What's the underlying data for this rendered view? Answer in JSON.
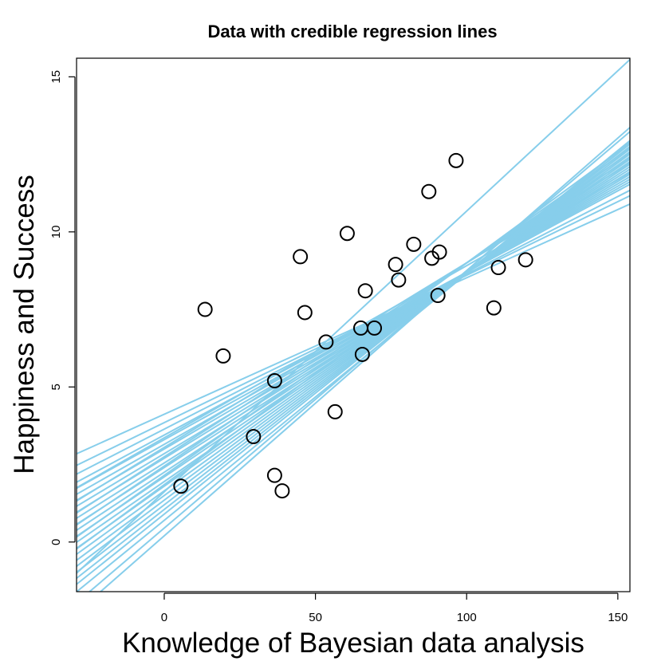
{
  "chart_data": {
    "type": "scatter",
    "title": "Data with credible regression lines",
    "xlabel": "Knowledge of Bayesian data analysis",
    "ylabel": "Happiness and Success",
    "xlim": [
      -29,
      154
    ],
    "ylim": [
      -1.6,
      15.6
    ],
    "xticks": [
      0,
      50,
      100,
      150
    ],
    "yticks": [
      0,
      5,
      10,
      15
    ],
    "grid": false,
    "line_color": "#87ceeb",
    "point_color": "#000000",
    "points": [
      {
        "x": 5.5,
        "y": 1.8
      },
      {
        "x": 13.5,
        "y": 7.5
      },
      {
        "x": 19.5,
        "y": 6.0
      },
      {
        "x": 29.5,
        "y": 3.4
      },
      {
        "x": 36.5,
        "y": 5.2
      },
      {
        "x": 36.5,
        "y": 2.15
      },
      {
        "x": 39.0,
        "y": 1.65
      },
      {
        "x": 45.0,
        "y": 9.2
      },
      {
        "x": 46.5,
        "y": 7.4
      },
      {
        "x": 53.5,
        "y": 6.45
      },
      {
        "x": 56.5,
        "y": 4.2
      },
      {
        "x": 60.5,
        "y": 9.95
      },
      {
        "x": 65.0,
        "y": 6.9
      },
      {
        "x": 65.5,
        "y": 6.05
      },
      {
        "x": 66.5,
        "y": 8.1
      },
      {
        "x": 69.5,
        "y": 6.9
      },
      {
        "x": 76.5,
        "y": 8.95
      },
      {
        "x": 77.5,
        "y": 8.45
      },
      {
        "x": 82.5,
        "y": 9.6
      },
      {
        "x": 87.5,
        "y": 11.3
      },
      {
        "x": 88.5,
        "y": 9.15
      },
      {
        "x": 90.5,
        "y": 7.95
      },
      {
        "x": 91.0,
        "y": 9.35
      },
      {
        "x": 96.5,
        "y": 12.3
      },
      {
        "x": 109.0,
        "y": 7.55
      },
      {
        "x": 110.5,
        "y": 8.85
      },
      {
        "x": 119.5,
        "y": 9.1
      }
    ],
    "regression_lines": [
      {
        "intercept": 4.12,
        "slope": 0.044
      },
      {
        "intercept": 3.85,
        "slope": 0.0475
      },
      {
        "intercept": 3.64,
        "slope": 0.05
      },
      {
        "intercept": 3.45,
        "slope": 0.0525
      },
      {
        "intercept": 3.3,
        "slope": 0.054
      },
      {
        "intercept": 3.15,
        "slope": 0.0555
      },
      {
        "intercept": 3.36,
        "slope": 0.0555
      },
      {
        "intercept": 3.0,
        "slope": 0.057
      },
      {
        "intercept": 2.85,
        "slope": 0.0585
      },
      {
        "intercept": 3.05,
        "slope": 0.0595
      },
      {
        "intercept": 2.7,
        "slope": 0.06
      },
      {
        "intercept": 2.55,
        "slope": 0.0615
      },
      {
        "intercept": 2.75,
        "slope": 0.0625
      },
      {
        "intercept": 2.4,
        "slope": 0.063
      },
      {
        "intercept": 2.25,
        "slope": 0.0645
      },
      {
        "intercept": 2.45,
        "slope": 0.0655
      },
      {
        "intercept": 2.1,
        "slope": 0.066
      },
      {
        "intercept": 1.95,
        "slope": 0.0675
      },
      {
        "intercept": 2.15,
        "slope": 0.0685
      },
      {
        "intercept": 1.8,
        "slope": 0.069
      },
      {
        "intercept": 1.65,
        "slope": 0.0705
      },
      {
        "intercept": 1.85,
        "slope": 0.0715
      },
      {
        "intercept": 1.5,
        "slope": 0.072
      },
      {
        "intercept": 1.35,
        "slope": 0.0735
      },
      {
        "intercept": 1.2,
        "slope": 0.075
      },
      {
        "intercept": 1.05,
        "slope": 0.0765
      },
      {
        "intercept": 0.9,
        "slope": 0.078
      },
      {
        "intercept": 0.7,
        "slope": 0.0795
      },
      {
        "intercept": 0.45,
        "slope": 0.083
      },
      {
        "intercept": 0.2,
        "slope": 0.0855
      },
      {
        "intercept": 1.62,
        "slope": 0.0905
      }
    ]
  }
}
